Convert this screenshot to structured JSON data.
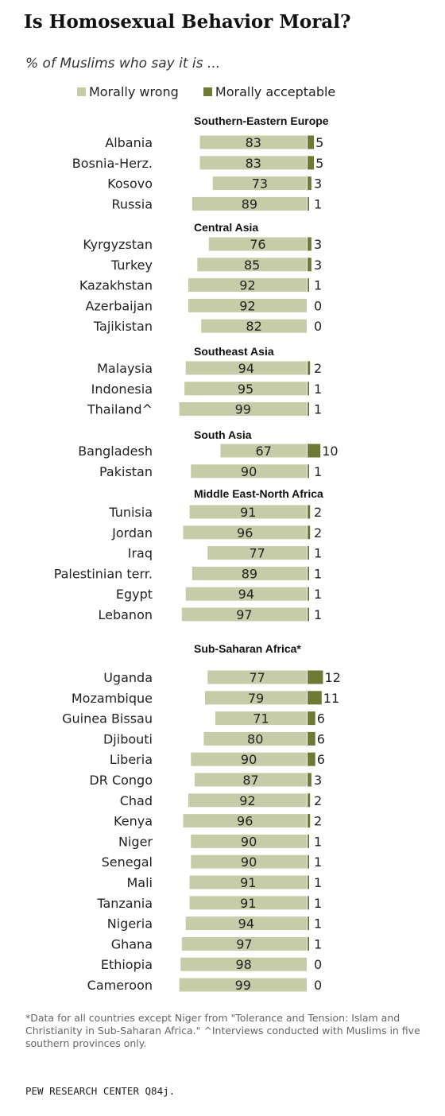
{
  "title": "Is Homosexual Behavior Moral?",
  "subtitle": "% of Muslims who say it is ...",
  "colors": {
    "wrong": "#c6cca7",
    "acceptable": "#6e7a33"
  },
  "legend": {
    "wrong": "Morally wrong",
    "acceptable": "Morally acceptable"
  },
  "chart_data": {
    "type": "bar",
    "series": [
      {
        "name": "Morally wrong"
      },
      {
        "name": "Morally acceptable"
      }
    ],
    "groups": [
      {
        "name": "Southern-Eastern  Europe",
        "rows": [
          {
            "label": "Albania",
            "wrong": 83,
            "acceptable": 5
          },
          {
            "label": "Bosnia-Herz.",
            "wrong": 83,
            "acceptable": 5
          },
          {
            "label": "Kosovo",
            "wrong": 73,
            "acceptable": 3
          },
          {
            "label": "Russia",
            "wrong": 89,
            "acceptable": 1
          }
        ]
      },
      {
        "name": "Central Asia",
        "rows": [
          {
            "label": "Kyrgyzstan",
            "wrong": 76,
            "acceptable": 3
          },
          {
            "label": "Turkey",
            "wrong": 85,
            "acceptable": 3
          },
          {
            "label": "Kazakhstan",
            "wrong": 92,
            "acceptable": 1
          },
          {
            "label": "Azerbaijan",
            "wrong": 92,
            "acceptable": 0
          },
          {
            "label": "Tajikistan",
            "wrong": 82,
            "acceptable": 0
          }
        ]
      },
      {
        "name": "Southeast  Asia",
        "rows": [
          {
            "label": "Malaysia",
            "wrong": 94,
            "acceptable": 2
          },
          {
            "label": "Indonesia",
            "wrong": 95,
            "acceptable": 1
          },
          {
            "label": "Thailand^",
            "wrong": 99,
            "acceptable": 1
          }
        ]
      },
      {
        "name": "South Asia",
        "rows": [
          {
            "label": "Bangladesh",
            "wrong": 67,
            "acceptable": 10
          },
          {
            "label": "Pakistan",
            "wrong": 90,
            "acceptable": 1
          }
        ]
      },
      {
        "name": "Middle East-North  Africa",
        "rows": [
          {
            "label": "Tunisia",
            "wrong": 91,
            "acceptable": 2
          },
          {
            "label": "Jordan",
            "wrong": 96,
            "acceptable": 2
          },
          {
            "label": "Iraq",
            "wrong": 77,
            "acceptable": 1
          },
          {
            "label": "Palestinian terr.",
            "wrong": 89,
            "acceptable": 1
          },
          {
            "label": "Egypt",
            "wrong": 94,
            "acceptable": 1
          },
          {
            "label": "Lebanon",
            "wrong": 97,
            "acceptable": 1
          }
        ]
      },
      {
        "name": "Sub-Saharan  Africa*",
        "rows": [
          {
            "label": "Uganda",
            "wrong": 77,
            "acceptable": 12
          },
          {
            "label": "Mozambique",
            "wrong": 79,
            "acceptable": 11
          },
          {
            "label": "Guinea Bissau",
            "wrong": 71,
            "acceptable": 6
          },
          {
            "label": "Djibouti",
            "wrong": 80,
            "acceptable": 6
          },
          {
            "label": "Liberia",
            "wrong": 90,
            "acceptable": 6
          },
          {
            "label": "DR Congo",
            "wrong": 87,
            "acceptable": 3
          },
          {
            "label": "Chad",
            "wrong": 92,
            "acceptable": 2
          },
          {
            "label": "Kenya",
            "wrong": 96,
            "acceptable": 2
          },
          {
            "label": "Niger",
            "wrong": 90,
            "acceptable": 1
          },
          {
            "label": "Senegal",
            "wrong": 90,
            "acceptable": 1
          },
          {
            "label": "Mali",
            "wrong": 91,
            "acceptable": 1
          },
          {
            "label": "Tanzania",
            "wrong": 91,
            "acceptable": 1
          },
          {
            "label": "Nigeria",
            "wrong": 94,
            "acceptable": 1
          },
          {
            "label": "Ghana",
            "wrong": 97,
            "acceptable": 1
          },
          {
            "label": "Ethiopia",
            "wrong": 98,
            "acceptable": 0
          },
          {
            "label": "Cameroon",
            "wrong": 99,
            "acceptable": 0
          }
        ]
      }
    ]
  },
  "footnote": "*Data for all countries except Niger from \"Tolerance and Tension: Islam and Christianity in Sub-Saharan Africa.\" ^Interviews conducted with Muslims in five southern provinces only.",
  "source": "PEW RESEARCH CENTER Q84j."
}
